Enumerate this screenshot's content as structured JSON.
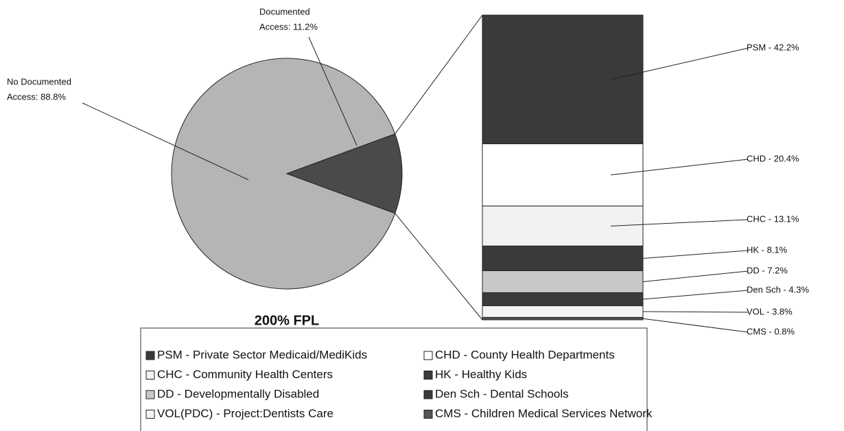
{
  "chart_data": {
    "type": "pie-of-bar",
    "title": "200% FPL",
    "pie": {
      "values": [
        88.8,
        11.2
      ],
      "value_labels": [
        [
          "No Documented",
          "Access:  88.8%"
        ],
        [
          "Documented",
          "Access:  11.2%"
        ]
      ],
      "colors": [
        "#b5b5b5",
        "#4a4a4a"
      ]
    },
    "bar": {
      "values": [
        42.2,
        20.4,
        13.1,
        8.1,
        7.2,
        4.3,
        3.8,
        0.8
      ],
      "value_labels": [
        "PSM - 42.2%",
        "CHD - 20.4%",
        "CHC - 13.1%",
        "HK - 8.1%",
        "DD - 7.2%",
        "Den Sch - 4.3%",
        "VOL - 3.8%",
        "CMS - 0.8%"
      ],
      "colors": [
        "#3a3a3a",
        "#ffffff",
        "#f2f2f2",
        "#3a3a3a",
        "#c8c8c8",
        "#3a3a3a",
        "#f4f4f4",
        "#555555"
      ]
    },
    "legend": [
      "PSM - Private Sector Medicaid/MediKids",
      "CHD - County Health Departments",
      "CHC - Community Health Centers",
      "HK - Healthy Kids",
      "DD - Developmentally Disabled",
      "Den Sch - Dental Schools",
      "VOL(PDC) - Project:Dentists Care",
      "CMS - Children Medical Services Network"
    ]
  }
}
